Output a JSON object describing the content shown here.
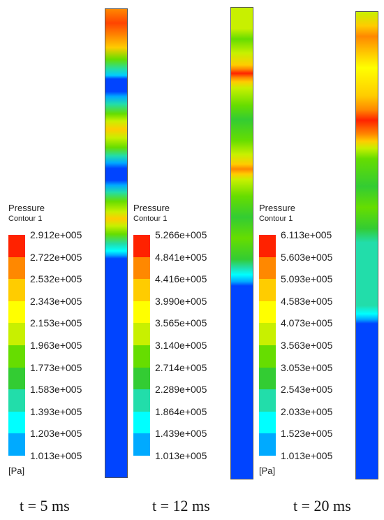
{
  "panels": [
    {
      "caption": "t = 5 ms",
      "legend_title": "Pressure",
      "legend_subtitle": "Contour 1",
      "unit": "[Pa]",
      "ticks": [
        "2.912e+005",
        "2.722e+005",
        "2.532e+005",
        "2.343e+005",
        "2.153e+005",
        "1.963e+005",
        "1.773e+005",
        "1.583e+005",
        "1.393e+005",
        "1.203e+005",
        "1.013e+005"
      ]
    },
    {
      "caption": "t = 12 ms",
      "legend_title": "Pressure",
      "legend_subtitle": "Contour 1",
      "unit": "[Pa]",
      "ticks": [
        "5.266e+005",
        "4.841e+005",
        "4.416e+005",
        "3.990e+005",
        "3.565e+005",
        "3.140e+005",
        "2.714e+005",
        "2.289e+005",
        "1.864e+005",
        "1.439e+005",
        "1.013e+005"
      ]
    },
    {
      "caption": "t = 20 ms",
      "legend_title": "Pressure",
      "legend_subtitle": "Contour 1",
      "unit": "[Pa]",
      "ticks": [
        "6.113e+005",
        "5.603e+005",
        "5.093e+005",
        "4.583e+005",
        "4.073e+005",
        "3.563e+005",
        "3.053e+005",
        "2.543e+005",
        "2.033e+005",
        "1.523e+005",
        "1.013e+005"
      ]
    }
  ],
  "colormap": [
    "#ff2200",
    "#ff8800",
    "#ffcc00",
    "#ffff00",
    "#c8f000",
    "#66dd00",
    "#33cc33",
    "#22ddaa",
    "#00ffff",
    "#00aaff",
    "#0044ff"
  ]
}
